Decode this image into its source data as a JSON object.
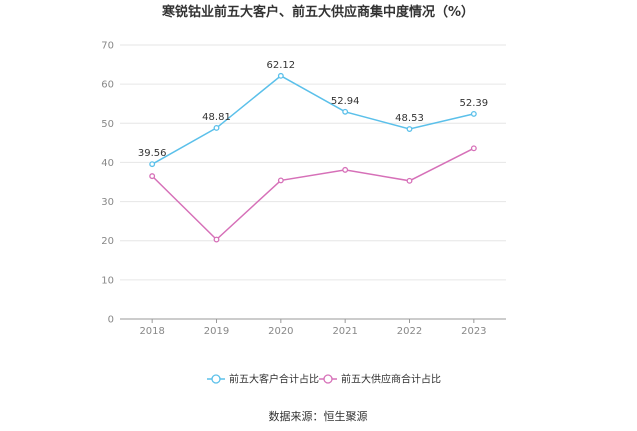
{
  "chart_data": {
    "type": "line",
    "title": "寒锐钴业前五大客户、前五大供应商集中度情况（%）",
    "categories": [
      "2018",
      "2019",
      "2020",
      "2021",
      "2022",
      "2023"
    ],
    "ylim": [
      0,
      70
    ],
    "yticks": [
      "0",
      "10",
      "20",
      "30",
      "40",
      "50",
      "60",
      "70"
    ],
    "grid": true,
    "legend_position": "bottom-center",
    "series": [
      {
        "name": "前五大客户合计占比",
        "color": "#5bc0ea",
        "values": [
          39.56,
          48.81,
          62.12,
          52.94,
          48.53,
          52.39
        ],
        "labels": [
          "39.56",
          "48.81",
          "62.12",
          "52.94",
          "48.53",
          "52.39"
        ],
        "show_labels": true
      },
      {
        "name": "前五大供应商合计占比",
        "color": "#d670b8",
        "values": [
          36.5,
          20.3,
          35.4,
          38.1,
          35.3,
          43.6
        ],
        "show_labels": false
      }
    ]
  },
  "source": "数据来源：恒生聚源"
}
